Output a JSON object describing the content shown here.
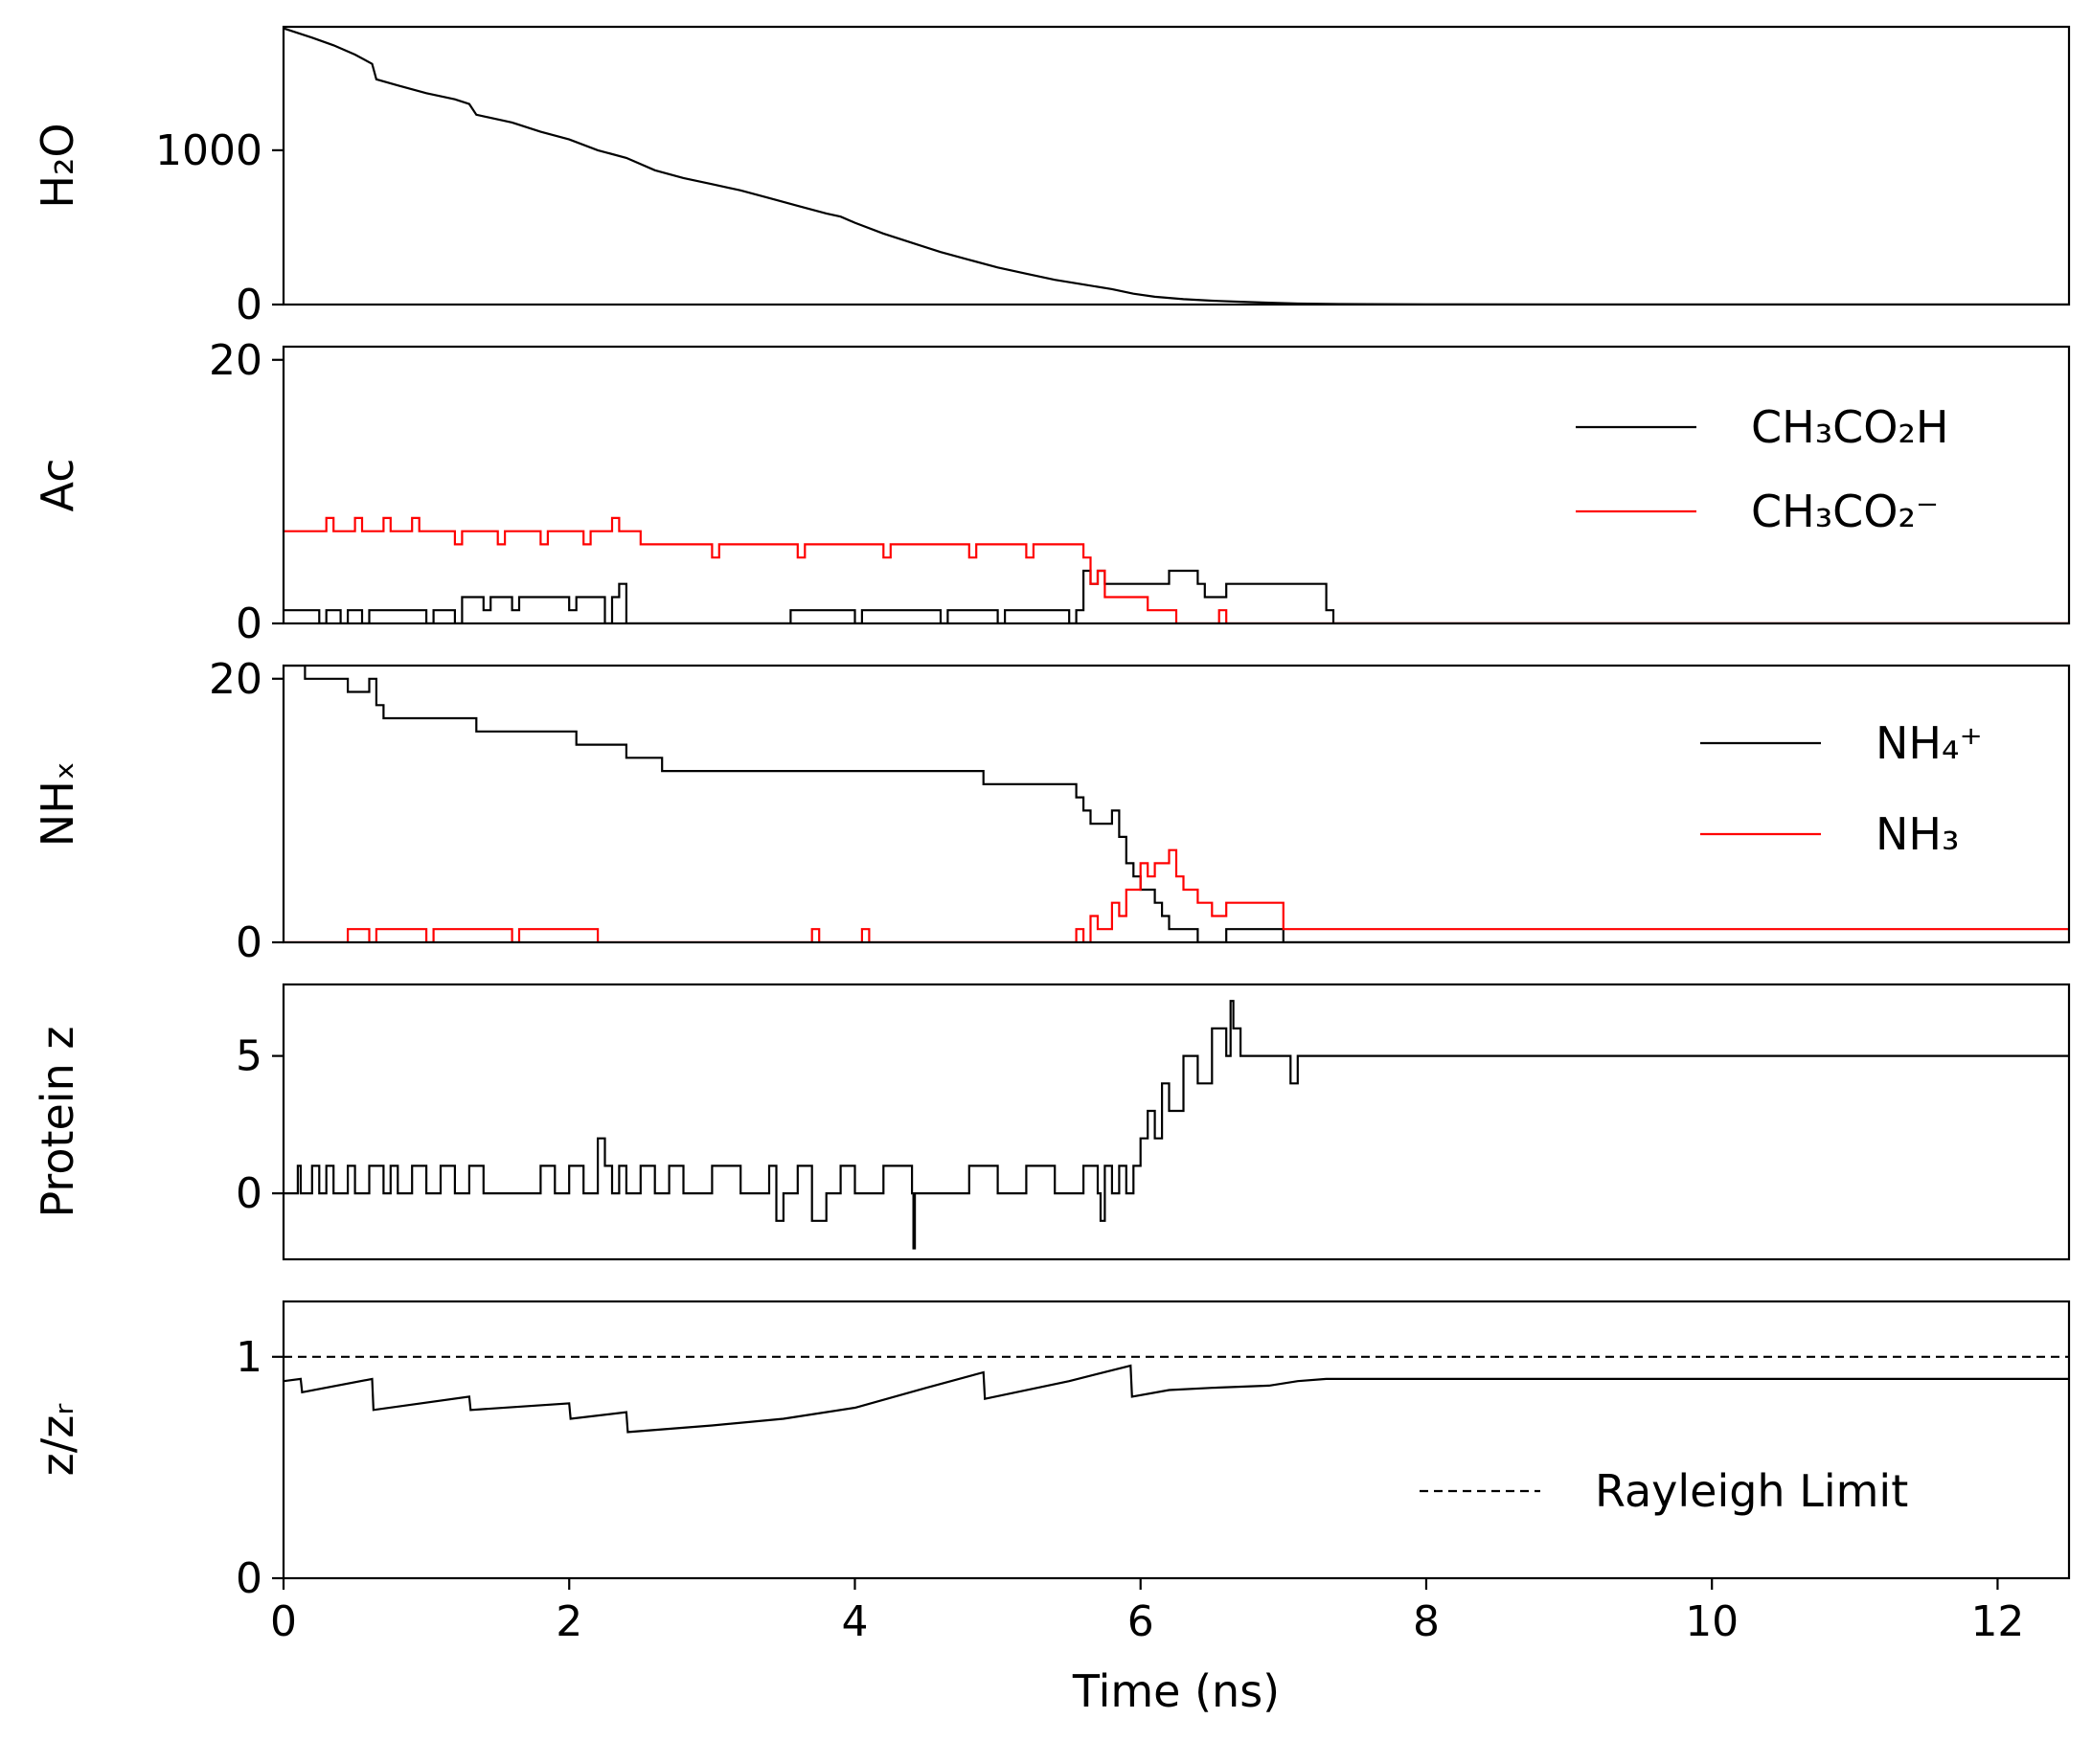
{
  "figure": {
    "xlabel": "Time (ns)",
    "xlim": [
      0,
      12.5
    ],
    "xticks": [
      0,
      2,
      4,
      6,
      8,
      10,
      12
    ]
  },
  "chart_data": [
    {
      "type": "line",
      "ylabel": "H₂O",
      "ylim": [
        0,
        1800
      ],
      "yticks": [
        0,
        1000
      ],
      "grid": false,
      "series": [
        {
          "color": "#000000",
          "style": "solid",
          "x": [
            0,
            0.1,
            0.2,
            0.35,
            0.5,
            0.62,
            0.65,
            0.8,
            1.0,
            1.2,
            1.3,
            1.35,
            1.6,
            1.8,
            2.0,
            2.2,
            2.4,
            2.6,
            2.8,
            3.0,
            3.2,
            3.4,
            3.6,
            3.8,
            3.9,
            4.0,
            4.2,
            4.4,
            4.6,
            4.8,
            5.0,
            5.2,
            5.4,
            5.6,
            5.8,
            5.95,
            6.1,
            6.3,
            6.5,
            6.7,
            6.9,
            7.1,
            7.4,
            8,
            9,
            10,
            11,
            12.5
          ],
          "y": [
            1790,
            1760,
            1730,
            1680,
            1620,
            1560,
            1460,
            1420,
            1370,
            1330,
            1300,
            1230,
            1180,
            1120,
            1070,
            1000,
            950,
            870,
            820,
            780,
            740,
            690,
            640,
            590,
            570,
            530,
            460,
            400,
            340,
            290,
            240,
            200,
            160,
            130,
            100,
            70,
            50,
            35,
            25,
            18,
            12,
            6,
            3,
            1,
            0,
            0,
            0,
            0
          ]
        }
      ]
    },
    {
      "type": "line",
      "ylabel": "Ac",
      "ylim": [
        0,
        21
      ],
      "yticks": [
        0,
        20
      ],
      "grid": false,
      "legend": "right",
      "series": [
        {
          "name": "CH₃CO₂H",
          "color": "#000000",
          "style": "solid",
          "x": [
            0,
            0.25,
            0.3,
            0.4,
            0.45,
            0.55,
            0.6,
            1.0,
            1.05,
            1.2,
            1.25,
            1.4,
            1.45,
            1.6,
            1.65,
            2.0,
            2.05,
            2.25,
            2.3,
            2.35,
            2.4,
            3.5,
            3.55,
            4.0,
            4.05,
            4.6,
            4.65,
            5.0,
            5.05,
            5.5,
            5.55,
            5.6,
            5.65,
            5.7,
            5.75,
            6.2,
            6.4,
            6.45,
            6.6,
            7.3,
            7.35,
            12.5
          ],
          "y": [
            1,
            0,
            1,
            0,
            1,
            0,
            1,
            0,
            1,
            0,
            2,
            1,
            2,
            1,
            2,
            1,
            2,
            0,
            2,
            3,
            0,
            0,
            1,
            0,
            1,
            0,
            1,
            0,
            1,
            0,
            1,
            4,
            3,
            4,
            3,
            4,
            3,
            2,
            3,
            1,
            0,
            0
          ]
        },
        {
          "name": "CH₃CO₂⁻",
          "color": "#ff0000",
          "style": "solid",
          "x": [
            0,
            0.3,
            0.35,
            0.5,
            0.55,
            0.7,
            0.75,
            0.9,
            0.95,
            1.2,
            1.25,
            1.5,
            1.55,
            1.8,
            1.85,
            2.1,
            2.15,
            2.3,
            2.35,
            2.5,
            2.55,
            3.0,
            3.05,
            3.6,
            3.65,
            4.2,
            4.25,
            4.8,
            4.85,
            5.2,
            5.25,
            5.6,
            5.65,
            5.7,
            5.75,
            6.0,
            6.05,
            6.2,
            6.25,
            6.5,
            6.55,
            6.6,
            6.65,
            12.5
          ],
          "y": [
            7,
            8,
            7,
            8,
            7,
            8,
            7,
            8,
            7,
            6,
            7,
            6,
            7,
            6,
            7,
            6,
            7,
            8,
            7,
            6,
            6,
            5,
            6,
            5,
            6,
            5,
            6,
            5,
            6,
            5,
            6,
            5,
            3,
            4,
            2,
            2,
            1,
            1,
            0,
            0,
            1,
            0,
            0,
            0
          ]
        }
      ]
    },
    {
      "type": "line",
      "ylabel": "NHₓ",
      "ylim": [
        0,
        21
      ],
      "yticks": [
        0,
        20
      ],
      "grid": false,
      "legend": "right",
      "series": [
        {
          "name": "NH₄⁺",
          "color": "#000000",
          "style": "solid",
          "x": [
            0,
            0.1,
            0.15,
            0.4,
            0.45,
            0.6,
            0.65,
            0.7,
            1.3,
            1.35,
            2.0,
            2.05,
            2.3,
            2.4,
            2.45,
            2.65,
            2.7,
            3.5,
            3.55,
            4.0,
            4.05,
            4.9,
            4.95,
            5.2,
            5.25,
            5.5,
            5.55,
            5.6,
            5.65,
            5.8,
            5.85,
            5.9,
            5.95,
            6.0,
            6.1,
            6.15,
            6.2,
            6.3,
            6.4,
            6.6,
            7.0,
            12.5
          ],
          "y": [
            21,
            21,
            20,
            20,
            19,
            20,
            18,
            17,
            17,
            16,
            16,
            15,
            15,
            14,
            14,
            13,
            13,
            13,
            13,
            13,
            13,
            12,
            12,
            12,
            12,
            12,
            11,
            10,
            9,
            10,
            8,
            6,
            5,
            4,
            3,
            2,
            1,
            1,
            0,
            1,
            0,
            0
          ]
        },
        {
          "name": "NH₃",
          "color": "#ff0000",
          "style": "solid",
          "x": [
            0,
            0.4,
            0.45,
            0.6,
            0.65,
            1.0,
            1.05,
            1.6,
            1.65,
            2.2,
            2.25,
            3.7,
            3.75,
            4.05,
            4.1,
            5.5,
            5.55,
            5.6,
            5.65,
            5.7,
            5.8,
            5.85,
            5.9,
            6.0,
            6.05,
            6.1,
            6.2,
            6.25,
            6.3,
            6.4,
            6.5,
            6.6,
            7.0,
            12.5
          ],
          "y": [
            0,
            0,
            1,
            0,
            1,
            0,
            1,
            0,
            1,
            0,
            0,
            1,
            0,
            1,
            0,
            0,
            1,
            0,
            2,
            1,
            3,
            2,
            4,
            6,
            5,
            6,
            7,
            5,
            4,
            3,
            2,
            3,
            1,
            1
          ]
        }
      ]
    },
    {
      "type": "line",
      "ylabel": "Protein z",
      "ylim": [
        -2.4,
        7.6
      ],
      "yticks": [
        0,
        5
      ],
      "grid": false,
      "series": [
        {
          "color": "#000000",
          "style": "solid",
          "x": [
            0,
            0.1,
            0.12,
            0.2,
            0.25,
            0.3,
            0.35,
            0.45,
            0.5,
            0.6,
            0.7,
            0.75,
            0.8,
            0.9,
            1.0,
            1.1,
            1.2,
            1.3,
            1.4,
            1.5,
            1.8,
            1.9,
            2.0,
            2.1,
            2.2,
            2.25,
            2.3,
            2.35,
            2.4,
            2.5,
            2.6,
            2.7,
            2.8,
            2.9,
            3.0,
            3.2,
            3.4,
            3.45,
            3.5,
            3.6,
            3.7,
            3.8,
            3.9,
            4.0,
            4.2,
            4.4,
            4.41,
            4.42,
            4.6,
            4.8,
            5.0,
            5.2,
            5.4,
            5.6,
            5.7,
            5.72,
            5.75,
            5.8,
            5.85,
            5.9,
            5.95,
            6.0,
            6.05,
            6.1,
            6.15,
            6.2,
            6.3,
            6.4,
            6.5,
            6.6,
            6.63,
            6.65,
            6.7,
            6.9,
            7.0,
            7.05,
            7.1,
            12.5
          ],
          "y": [
            0,
            1,
            0,
            1,
            0,
            1,
            0,
            1,
            0,
            1,
            0,
            1,
            0,
            1,
            0,
            1,
            0,
            1,
            0,
            0,
            1,
            0,
            1,
            0,
            2,
            1,
            0,
            1,
            0,
            1,
            0,
            1,
            0,
            0,
            1,
            0,
            1,
            -1,
            0,
            1,
            -1,
            0,
            1,
            0,
            1,
            0,
            -2,
            0,
            0,
            1,
            0,
            1,
            0,
            1,
            0,
            -1,
            1,
            0,
            1,
            0,
            1,
            2,
            3,
            2,
            4,
            3,
            5,
            4,
            6,
            5,
            7,
            6,
            5,
            5,
            5,
            4,
            5,
            5
          ]
        }
      ]
    },
    {
      "type": "line",
      "ylabel": "z/zᵣ",
      "ylim": [
        0,
        1.25
      ],
      "yticks": [
        0,
        1
      ],
      "grid": false,
      "legend": "lower right",
      "series": [
        {
          "color": "#000000",
          "style": "solid",
          "x": [
            0,
            0.12,
            0.13,
            0.62,
            0.63,
            1.3,
            1.31,
            2.0,
            2.01,
            2.4,
            2.41,
            3.0,
            3.5,
            4.0,
            4.5,
            4.9,
            4.91,
            5.5,
            5.93,
            5.94,
            6.2,
            6.5,
            6.9,
            7.1,
            7.3,
            8,
            9,
            10,
            12.5
          ],
          "y": [
            0.89,
            0.9,
            0.84,
            0.9,
            0.76,
            0.82,
            0.76,
            0.79,
            0.72,
            0.75,
            0.66,
            0.69,
            0.72,
            0.77,
            0.86,
            0.93,
            0.81,
            0.89,
            0.96,
            0.82,
            0.85,
            0.86,
            0.87,
            0.89,
            0.9,
            0.9,
            0.9,
            0.9,
            0.9
          ]
        },
        {
          "name": "Rayleigh Limit",
          "color": "#000000",
          "style": "dashed",
          "x": [
            0,
            12.5
          ],
          "y": [
            1,
            1
          ]
        }
      ]
    }
  ]
}
